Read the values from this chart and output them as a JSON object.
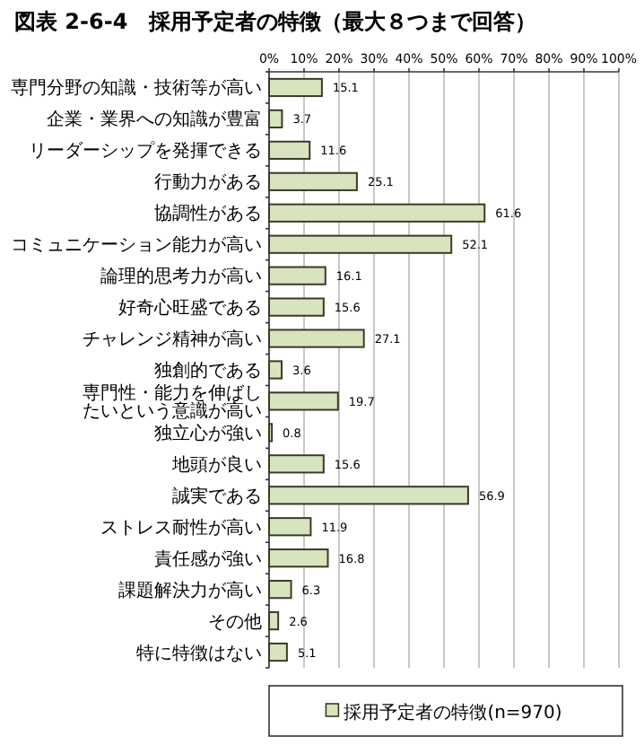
{
  "chart_data": {
    "type": "bar",
    "orientation": "horizontal",
    "title": "図表 2-6-4　採用予定者の特徴（最大８つまで回答）",
    "categories": [
      "専門分野の知識・技術等が高い",
      "企業・業界への知識が豊富",
      "リーダーシップを発揮できる",
      "行動力がある",
      "協調性がある",
      "コミュニケーション能力が高い",
      "論理的思考力が高い",
      "好奇心旺盛である",
      "チャレンジ精神が高い",
      "独創的である",
      "専門性・能力を伸ばしたいという意識が高い",
      "独立心が強い",
      "地頭が良い",
      "誠実である",
      "ストレス耐性が高い",
      "責任感が強い",
      "課題解決力が高い",
      "その他",
      "特に特徴はない"
    ],
    "series": [
      {
        "name": "採用予定者の特徴(n=970)",
        "color": "#d7e4bd",
        "values": [
          15.1,
          3.7,
          11.6,
          25.1,
          61.6,
          52.1,
          16.1,
          15.6,
          27.1,
          3.6,
          19.7,
          0.8,
          15.6,
          56.9,
          11.9,
          16.8,
          6.3,
          2.6,
          5.1
        ]
      }
    ],
    "xlim": [
      0,
      100
    ],
    "xticks": [
      {
        "value": 0,
        "label": "0%"
      },
      {
        "value": 10,
        "label": "10%"
      },
      {
        "value": 20,
        "label": "20%"
      },
      {
        "value": 30,
        "label": "30%"
      },
      {
        "value": 40,
        "label": "40%"
      },
      {
        "value": 50,
        "label": "50%"
      },
      {
        "value": 60,
        "label": "60%"
      },
      {
        "value": 70,
        "label": "70%"
      },
      {
        "value": 80,
        "label": "80%"
      },
      {
        "value": 90,
        "label": "90%"
      },
      {
        "value": 100,
        "label": "100%"
      }
    ],
    "grid": "x",
    "data_labels": true,
    "legend": "bottom"
  }
}
